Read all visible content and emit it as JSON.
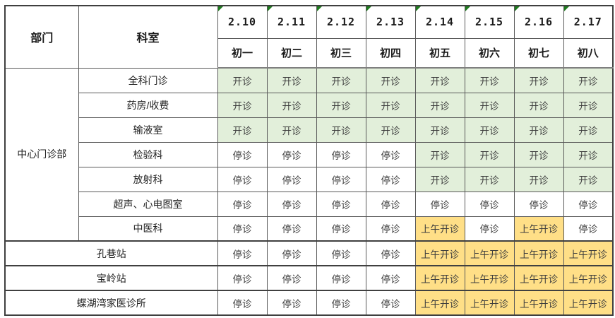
{
  "header": {
    "dept": "部门",
    "section": "科室",
    "days": [
      {
        "date": "2.10",
        "lunar": "初一"
      },
      {
        "date": "2.11",
        "lunar": "初二"
      },
      {
        "date": "2.12",
        "lunar": "初三"
      },
      {
        "date": "2.13",
        "lunar": "初四"
      },
      {
        "date": "2.14",
        "lunar": "初五"
      },
      {
        "date": "2.15",
        "lunar": "初六"
      },
      {
        "date": "2.16",
        "lunar": "初七"
      },
      {
        "date": "2.17",
        "lunar": "初八"
      }
    ]
  },
  "dept_group": {
    "name": "中心门诊部"
  },
  "rows": [
    {
      "name": "全科门诊",
      "cells": [
        "开诊",
        "开诊",
        "开诊",
        "开诊",
        "开诊",
        "开诊",
        "开诊",
        "开诊"
      ]
    },
    {
      "name": "药房/收费",
      "cells": [
        "开诊",
        "开诊",
        "开诊",
        "开诊",
        "开诊",
        "开诊",
        "开诊",
        "开诊"
      ]
    },
    {
      "name": "输液室",
      "cells": [
        "开诊",
        "开诊",
        "开诊",
        "开诊",
        "开诊",
        "开诊",
        "开诊",
        "开诊"
      ]
    },
    {
      "name": "检验科",
      "cells": [
        "停诊",
        "停诊",
        "停诊",
        "停诊",
        "开诊",
        "开诊",
        "开诊",
        "开诊"
      ]
    },
    {
      "name": "放射科",
      "cells": [
        "停诊",
        "停诊",
        "停诊",
        "停诊",
        "开诊",
        "开诊",
        "开诊",
        "开诊"
      ]
    },
    {
      "name": "超声、心电图室",
      "cells": [
        "停诊",
        "停诊",
        "停诊",
        "停诊",
        "停诊",
        "停诊",
        "停诊",
        "停诊"
      ]
    },
    {
      "name": "中医科",
      "cells": [
        "停诊",
        "停诊",
        "停诊",
        "停诊",
        "上午开诊",
        "停诊",
        "上午开诊",
        "停诊"
      ]
    }
  ],
  "stations": [
    {
      "name": "孔巷站",
      "cells": [
        "停诊",
        "停诊",
        "停诊",
        "停诊",
        "上午开诊",
        "上午开诊",
        "上午开诊",
        "上午开诊"
      ]
    },
    {
      "name": "宝岭站",
      "cells": [
        "停诊",
        "停诊",
        "停诊",
        "停诊",
        "上午开诊",
        "上午开诊",
        "上午开诊",
        "上午开诊"
      ]
    },
    {
      "name": "蝶湖湾家医诊所",
      "cells": [
        "停诊",
        "停诊",
        "停诊",
        "停诊",
        "上午开诊",
        "上午开诊",
        "上午开诊",
        "上午开诊"
      ]
    }
  ],
  "legend": {
    "open": "开诊",
    "closed": "停诊",
    "morning_open": "上午开诊"
  },
  "colors": {
    "open_bg": "#e2efda",
    "morning_open_bg": "#ffdf87",
    "closed_bg": "#ffffff",
    "error_triangle": "#1e7b1e"
  }
}
